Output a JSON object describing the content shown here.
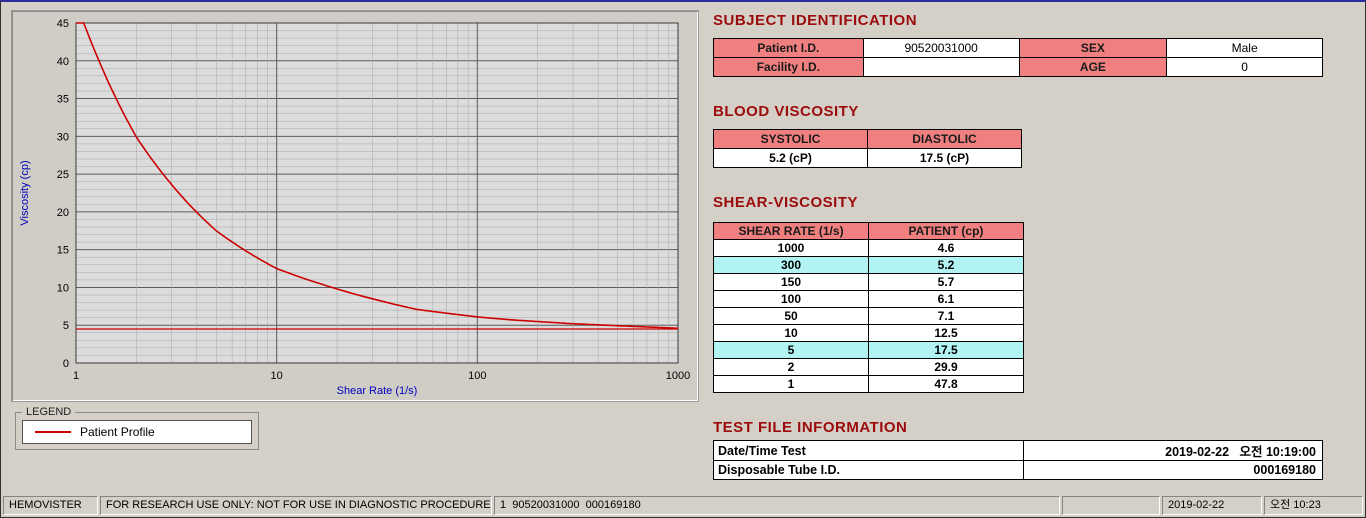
{
  "colors": {
    "heading": "#9b0b0b",
    "table_header": "#f08080",
    "row_highlight": "#b2f4f4",
    "series_line": "#cc0000",
    "axis_label": "#0000c0"
  },
  "chart_data": {
    "type": "line",
    "title": "",
    "xlabel": "Shear Rate (1/s)",
    "ylabel": "Viscosity (cp)",
    "x_scale": "log",
    "xlim": [
      1,
      1000
    ],
    "ylim": [
      0,
      45
    ],
    "y_major_ticks": [
      0,
      5,
      10,
      15,
      20,
      25,
      30,
      35,
      40,
      45
    ],
    "x_major_ticks": [
      1,
      10,
      100,
      1000
    ],
    "grid": "on",
    "series": [
      {
        "name": "Patient Profile",
        "color": "#cc0000",
        "x": [
          1,
          2,
          5,
          10,
          50,
          100,
          150,
          300,
          1000
        ],
        "y": [
          47.8,
          29.9,
          17.5,
          12.5,
          7.1,
          6.1,
          5.7,
          5.2,
          4.6
        ]
      }
    ],
    "baseline_y": 4.5,
    "legend": {
      "box_label": "LEGEND",
      "position": "below-chart",
      "items": [
        {
          "label": "Patient Profile",
          "color": "#cc0000"
        }
      ]
    }
  },
  "subject": {
    "title": "SUBJECT IDENTIFICATION",
    "patient_id_label": "Patient I.D.",
    "patient_id": "90520031000",
    "sex_label": "SEX",
    "sex": "Male",
    "facility_id_label": "Facility I.D.",
    "facility_id": "",
    "age_label": "AGE",
    "age": "0"
  },
  "blood_viscosity": {
    "title": "BLOOD VISCOSITY",
    "systolic_label": "SYSTOLIC",
    "diastolic_label": "DIASTOLIC",
    "systolic": "5.2 (cP)",
    "diastolic": "17.5 (cP)"
  },
  "shear": {
    "title": "SHEAR-VISCOSITY",
    "col1": "SHEAR RATE (1/s)",
    "col2": "PATIENT (cp)",
    "rows": [
      {
        "rate": "1000",
        "value": "4.6",
        "highlight": false
      },
      {
        "rate": "300",
        "value": "5.2",
        "highlight": true
      },
      {
        "rate": "150",
        "value": "5.7",
        "highlight": false
      },
      {
        "rate": "100",
        "value": "6.1",
        "highlight": false
      },
      {
        "rate": "50",
        "value": "7.1",
        "highlight": false
      },
      {
        "rate": "10",
        "value": "12.5",
        "highlight": false
      },
      {
        "rate": "5",
        "value": "17.5",
        "highlight": true
      },
      {
        "rate": "2",
        "value": "29.9",
        "highlight": false
      },
      {
        "rate": "1",
        "value": "47.8",
        "highlight": false
      }
    ]
  },
  "test_file": {
    "title": "TEST FILE INFORMATION",
    "date_label": "Date/Time Test",
    "date_value": "2019-02-22   오전 10:19:00",
    "tube_label": "Disposable Tube I.D.",
    "tube_value": "000169180"
  },
  "status_bar": {
    "app_name": "HEMOVISTER",
    "ruo_notice": "FOR RESEARCH USE ONLY: NOT FOR USE IN DIAGNOSTIC PROCEDURES",
    "session": "1  90520031000  000169180",
    "date": "2019-02-22",
    "time": "오전 10:23"
  }
}
